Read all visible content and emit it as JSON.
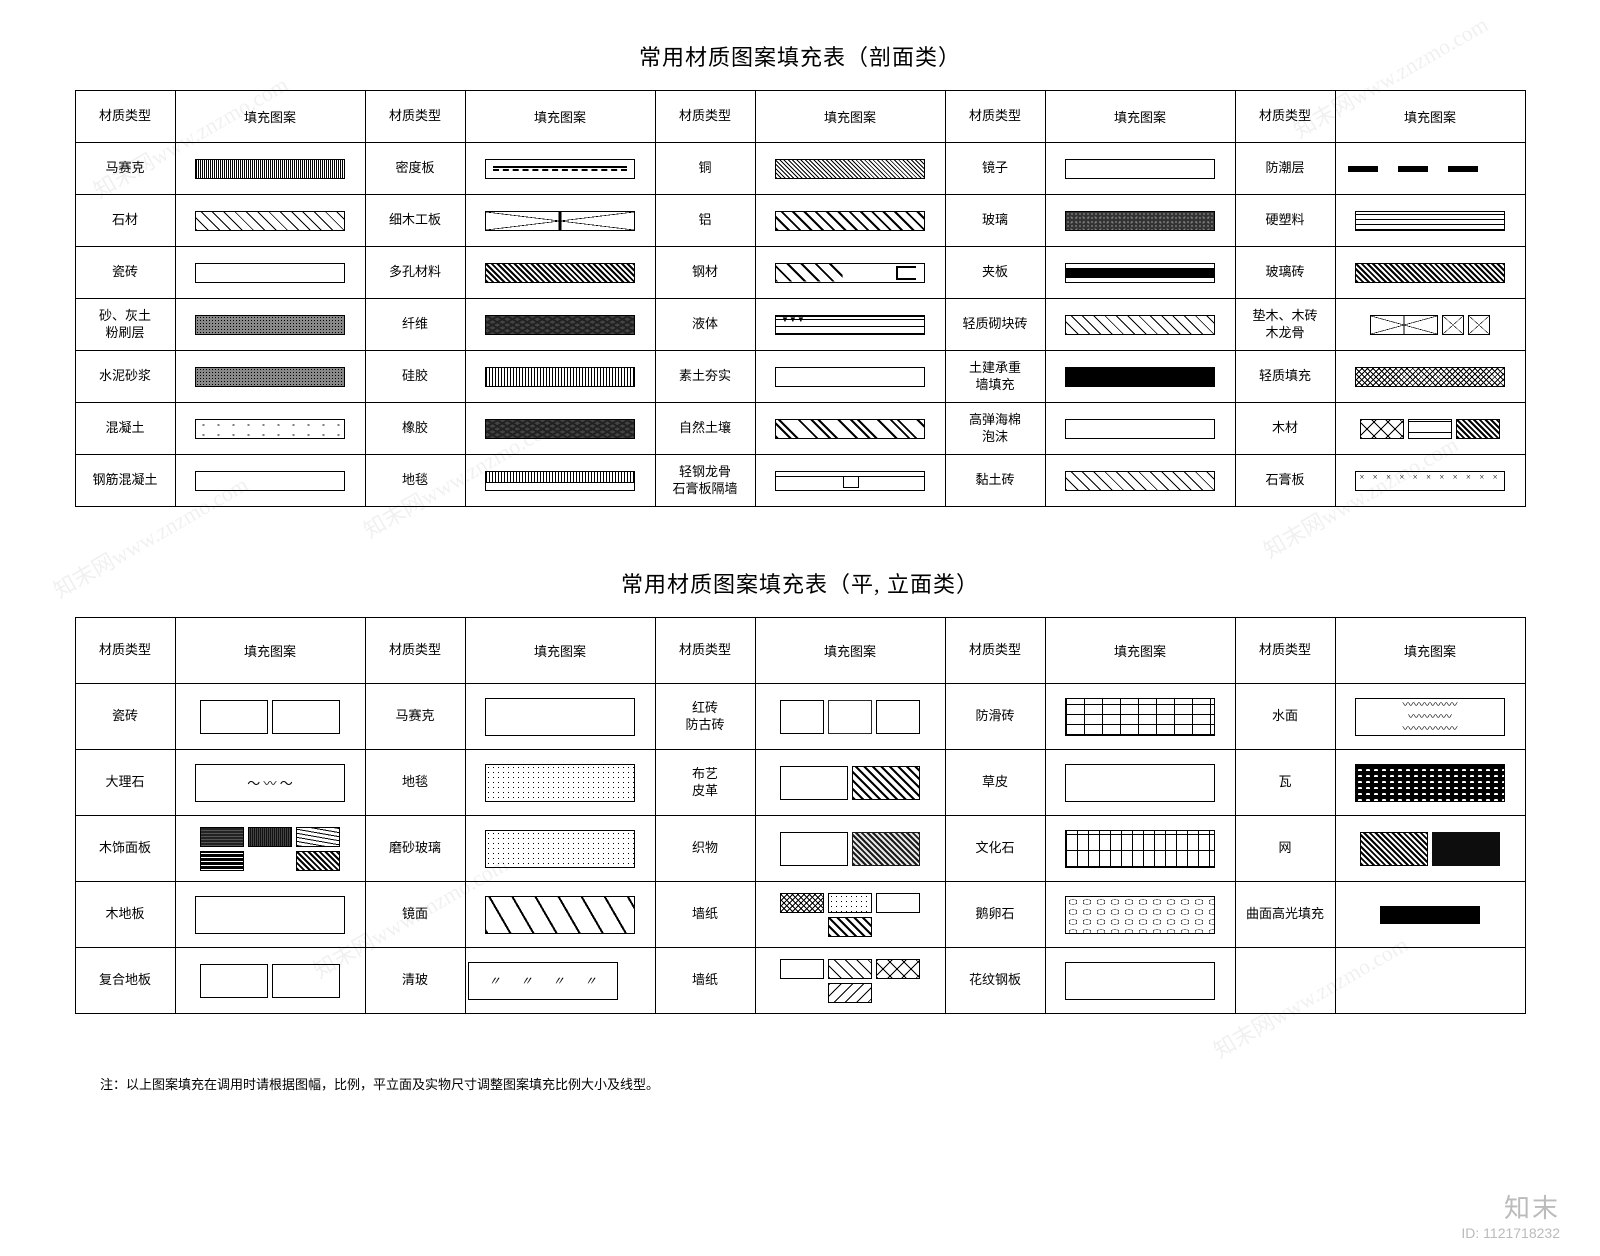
{
  "titles": {
    "t1": "常用材质图案填充表（剖面类）",
    "t2": "常用材质图案填充表（平, 立面类）"
  },
  "headers": {
    "material": "材质类型",
    "pattern": "填充图案"
  },
  "footnote": "注：以上图案填充在调用时请根据图幅，比例，平立面及实物尺寸调整图案填充比例大小及线型。",
  "watermark": {
    "text": "知末网www.znzmo.com",
    "logo": "知末",
    "id": "ID: 1121718232"
  },
  "table1_col_widths": {
    "label": 100,
    "pattern": 190
  },
  "pattern_swatch": {
    "section_w": 150,
    "section_h": 20,
    "elev_w": 150,
    "elev_h": 38,
    "border": "#000"
  },
  "colors": {
    "border": "#000000",
    "bg": "#ffffff",
    "text": "#000000",
    "wm": "#bbbbbb"
  },
  "font": {
    "title_size": 22,
    "cell_size": 13,
    "header_size": 14,
    "family": "SimSun"
  },
  "t1": {
    "cols": 5,
    "rows": [
      [
        {
          "label": "马赛克",
          "pattern": "p-dense-v"
        },
        {
          "label": "密度板",
          "pattern": "p-hline-dash"
        },
        {
          "label": "铜",
          "pattern": "p-diag-dense"
        },
        {
          "label": "镜子",
          "pattern": "p-zigzag"
        },
        {
          "label": "防潮层",
          "pattern": "p-blackdash"
        }
      ],
      [
        {
          "label": "石材",
          "pattern": "p-diag45"
        },
        {
          "label": "细木工板",
          "pattern": "p-Xbox"
        },
        {
          "label": "铝",
          "pattern": "p-diag45b"
        },
        {
          "label": "玻璃",
          "pattern": "p-noise"
        },
        {
          "label": "硬塑料",
          "pattern": "p-hline3"
        }
      ],
      [
        {
          "label": "瓷砖",
          "pattern": "p-brick-white"
        },
        {
          "label": "多孔材料",
          "pattern": "p-crosshatchd"
        },
        {
          "label": "钢材",
          "pattern": "p-channel"
        },
        {
          "label": "夹板",
          "pattern": "p-thickthin"
        },
        {
          "label": "玻璃砖",
          "pattern": "p-crosshatchd"
        }
      ],
      [
        {
          "label": "砂、灰土\n粉刷层",
          "pattern": "p-grainy"
        },
        {
          "label": "纤维",
          "pattern": "p-rubble"
        },
        {
          "label": "液体",
          "pattern": "p-tri"
        },
        {
          "label": "轻质砌块砖",
          "pattern": "p-diag45"
        },
        {
          "label": "垫木、木砖\n木龙骨",
          "pattern": "multi-x3"
        }
      ],
      [
        {
          "label": "水泥砂浆",
          "pattern": "p-grainy"
        },
        {
          "label": "硅胶",
          "pattern": "p-vdense"
        },
        {
          "label": "素土夯实",
          "pattern": "p-wave"
        },
        {
          "label": "土建承重\n墙填充",
          "pattern": "p-solid"
        },
        {
          "label": "轻质填充",
          "pattern": "p-fineX"
        }
      ],
      [
        {
          "label": "混凝土",
          "pattern": "p-dots"
        },
        {
          "label": "橡胶",
          "pattern": "p-rubble"
        },
        {
          "label": "自然土壤",
          "pattern": "p-soil"
        },
        {
          "label": "高弹海棉\n泡沫",
          "pattern": "p-fish"
        },
        {
          "label": "木材",
          "pattern": "multi-wood"
        }
      ],
      [
        {
          "label": "钢筋混凝土",
          "pattern": "p-diag45-dots"
        },
        {
          "label": "地毯",
          "pattern": "p-comb"
        },
        {
          "label": "轻钢龙骨\n石膏板隔墙",
          "pattern": "p-tee"
        },
        {
          "label": "黏土砖",
          "pattern": "p-diag45"
        },
        {
          "label": "石膏板",
          "pattern": "p-xrow"
        }
      ]
    ]
  },
  "t2": {
    "cols": 5,
    "rows": [
      [
        {
          "label": "瓷砖",
          "pattern": "multi-grid"
        },
        {
          "label": "马赛克",
          "pattern": "p-mosaic"
        },
        {
          "label": "红砖\n防古砖",
          "pattern": "multi-brick"
        },
        {
          "label": "防滑砖",
          "pattern": "p-offbrick"
        },
        {
          "label": "水面",
          "pattern": "p-wavy2"
        }
      ],
      [
        {
          "label": "大理石",
          "pattern": "p-marble"
        },
        {
          "label": "地毯",
          "pattern": "p-dotsfine"
        },
        {
          "label": "布艺\n皮革",
          "pattern": "multi-fabric"
        },
        {
          "label": "草皮",
          "pattern": "p-fish"
        },
        {
          "label": "瓦",
          "pattern": "p-scales"
        }
      ],
      [
        {
          "label": "木饰面板",
          "pattern": "multi-veneer"
        },
        {
          "label": "磨砂玻璃",
          "pattern": "p-dotsfine"
        },
        {
          "label": "织物",
          "pattern": "multi-textile"
        },
        {
          "label": "文化石",
          "pattern": "p-stone"
        },
        {
          "label": "网",
          "pattern": "multi-mesh"
        }
      ],
      [
        {
          "label": "木地板",
          "pattern": "p-plank"
        },
        {
          "label": "镜面",
          "pattern": "p-mirror-diag"
        },
        {
          "label": "墙纸",
          "pattern": "multi-wallpaper"
        },
        {
          "label": "鹅卵石",
          "pattern": "p-pebble"
        },
        {
          "label": "曲面高光填充",
          "pattern": "p-highlight"
        }
      ],
      [
        {
          "label": "复合地板",
          "pattern": "multi-lam"
        },
        {
          "label": "清玻",
          "pattern": "p-slash3"
        },
        {
          "label": "墙纸",
          "pattern": "multi-wallpaper2"
        },
        {
          "label": "花纹钢板",
          "pattern": "p-checker"
        },
        {
          "label": "",
          "pattern": ""
        }
      ]
    ]
  }
}
